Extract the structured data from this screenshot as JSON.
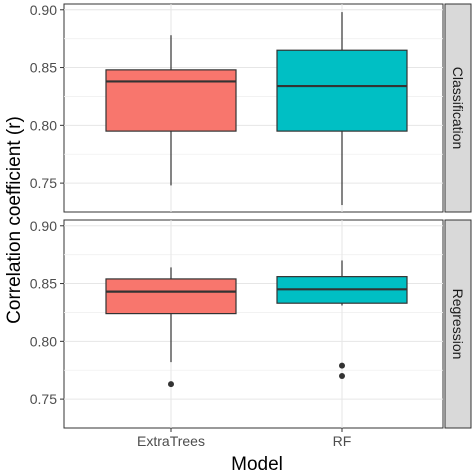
{
  "chart_data": {
    "type": "boxplot",
    "xlabel": "Model",
    "ylabel": "Correlation coefficient (r)",
    "categories": [
      "ExtraTrees",
      "RF"
    ],
    "colors": {
      "ExtraTrees": "#f8766d",
      "RF": "#00bfc4"
    },
    "ylim": [
      0.725,
      0.905
    ],
    "yticks": [
      0.75,
      0.8,
      0.85,
      0.9
    ],
    "ytick_labels": [
      "0.75",
      "0.80",
      "0.85",
      "0.90"
    ],
    "grid": true,
    "facets": [
      {
        "label": "Classification",
        "boxes": [
          {
            "category": "ExtraTrees",
            "min": 0.748,
            "q1": 0.795,
            "median": 0.838,
            "q3": 0.848,
            "max": 0.878,
            "outliers": []
          },
          {
            "category": "RF",
            "min": 0.731,
            "q1": 0.795,
            "median": 0.834,
            "q3": 0.865,
            "max": 0.898,
            "outliers": []
          }
        ]
      },
      {
        "label": "Regression",
        "boxes": [
          {
            "category": "ExtraTrees",
            "min": 0.782,
            "q1": 0.824,
            "median": 0.843,
            "q3": 0.854,
            "max": 0.864,
            "outliers": [
              0.763
            ]
          },
          {
            "category": "RF",
            "min": 0.831,
            "q1": 0.833,
            "median": 0.845,
            "q3": 0.856,
            "max": 0.87,
            "outliers": [
              0.779,
              0.77
            ]
          }
        ]
      }
    ]
  }
}
